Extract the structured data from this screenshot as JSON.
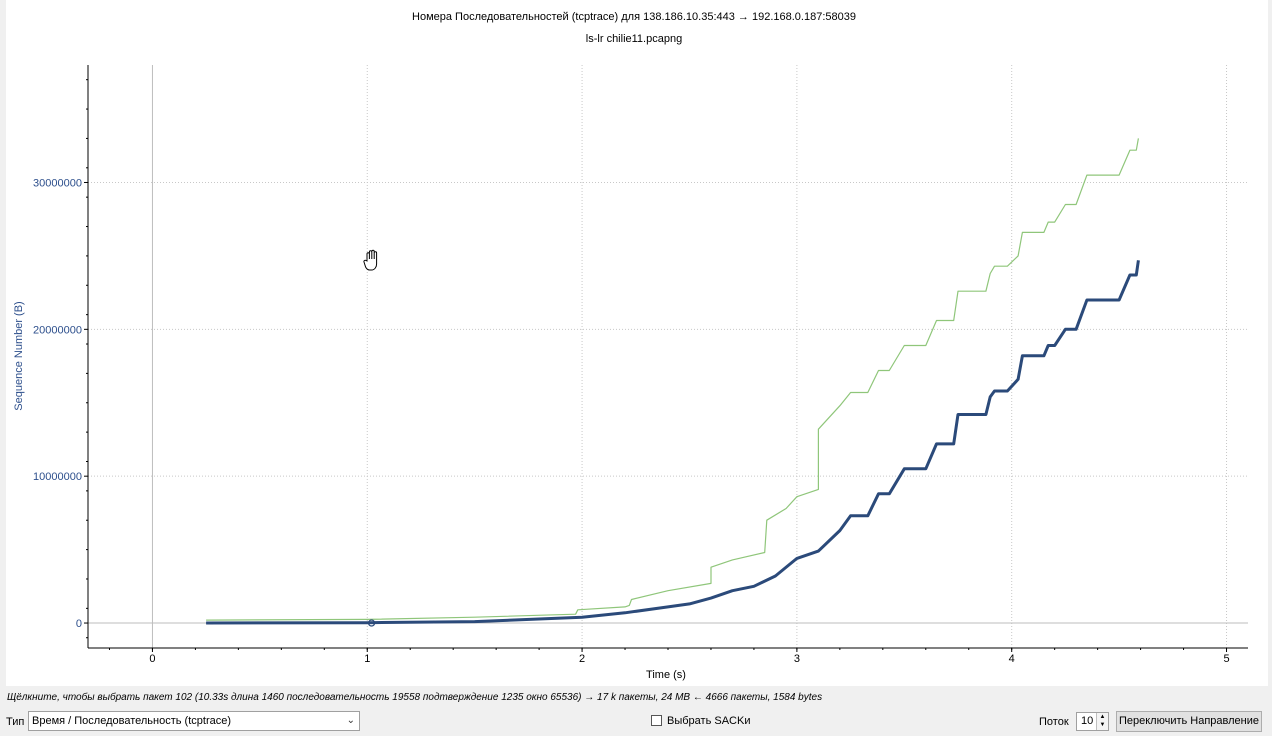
{
  "chart_data": {
    "type": "line",
    "title": "Номера Последовательностей (tcptrace) для 138.186.10.35:443 → 192.168.0.187:58039",
    "subtitle": "ls-lr chilie11.pcapng",
    "xlabel": "Time (s)",
    "ylabel": "Sequence Number (B)",
    "xlim": [
      -0.3,
      5.1
    ],
    "ylim": [
      -1700000,
      38000000
    ],
    "x_ticks": [
      0,
      1,
      2,
      3,
      4,
      5
    ],
    "x_tick_labels": [
      "0",
      "1",
      "2",
      "3",
      "4",
      "5"
    ],
    "y_ticks": [
      0,
      10000000,
      20000000,
      30000000
    ],
    "y_tick_labels": [
      "0",
      "10000000",
      "20000000",
      "30000000"
    ],
    "grid": true,
    "series": [
      {
        "color": "#8fc67a",
        "x": [
          0.25,
          1.0,
          1.5,
          1.97,
          1.98,
          2.2,
          2.22,
          2.23,
          2.4,
          2.6,
          2.6,
          2.7,
          2.85,
          2.86,
          2.95,
          3.0,
          3.1,
          3.1,
          3.2,
          3.25,
          3.33,
          3.38,
          3.43,
          3.5,
          3.55,
          3.6,
          3.65,
          3.68,
          3.73,
          3.75,
          3.85,
          3.88,
          3.9,
          3.92,
          3.98,
          4.03,
          4.05,
          4.15,
          4.17,
          4.2,
          4.25,
          4.27,
          4.3,
          4.35,
          4.37,
          4.5,
          4.55,
          4.58,
          4.59
        ],
        "y": [
          200000,
          250000,
          400000,
          600000,
          900000,
          1100000,
          1200000,
          1600000,
          2200000,
          2700000,
          3800000,
          4300000,
          4800000,
          7000000,
          7800000,
          8600000,
          9100000,
          13200000,
          14800000,
          15700000,
          15700000,
          17200000,
          17200000,
          18900000,
          18900000,
          18900000,
          20600000,
          20600000,
          20600000,
          22600000,
          22600000,
          22600000,
          23800000,
          24300000,
          24300000,
          25000000,
          26600000,
          26600000,
          27300000,
          27300000,
          28500000,
          28500000,
          28500000,
          30500000,
          30500000,
          30500000,
          32200000,
          32200000,
          33000000
        ]
      },
      {
        "color": "#2b4a7a",
        "x": [
          0.25,
          1.0,
          1.5,
          2.0,
          2.2,
          2.4,
          2.5,
          2.6,
          2.7,
          2.8,
          2.9,
          3.0,
          3.1,
          3.2,
          3.25,
          3.33,
          3.38,
          3.43,
          3.5,
          3.55,
          3.6,
          3.65,
          3.68,
          3.73,
          3.75,
          3.85,
          3.88,
          3.9,
          3.92,
          3.98,
          4.03,
          4.05,
          4.15,
          4.17,
          4.2,
          4.25,
          4.27,
          4.3,
          4.35,
          4.37,
          4.5,
          4.55,
          4.58,
          4.59
        ],
        "y": [
          0,
          20000,
          100000,
          400000,
          700000,
          1100000,
          1300000,
          1700000,
          2200000,
          2500000,
          3200000,
          4400000,
          4900000,
          6300000,
          7300000,
          7300000,
          8800000,
          8800000,
          10500000,
          10500000,
          10500000,
          12200000,
          12200000,
          12200000,
          14200000,
          14200000,
          14200000,
          15400000,
          15800000,
          15800000,
          16600000,
          18200000,
          18200000,
          18900000,
          18900000,
          20000000,
          20000000,
          20000000,
          22000000,
          22000000,
          22000000,
          23700000,
          23700000,
          24700000
        ]
      }
    ],
    "selected_point": {
      "x": 1.02,
      "y": 0
    }
  },
  "status_text": "Щёлкните, чтобы выбрать пакет 102 (10.33s длина 1460 последовательность 19558 подтверждение 1235 окно 65536) → 17 k пакеты, 24 MB ← 4666 пакеты, 1584 bytes",
  "controls": {
    "type_label": "Тип",
    "type_value": "Время / Последовательность (tcptrace)",
    "sack_label": "Выбрать SACKи",
    "stream_label": "Поток",
    "stream_value": "10",
    "switch_label": "Переключить Направление"
  },
  "icons": {
    "cursor": "hand-cursor-icon",
    "dropdown": "chevron-down-icon",
    "spinner": "spinner-arrows-icon"
  }
}
